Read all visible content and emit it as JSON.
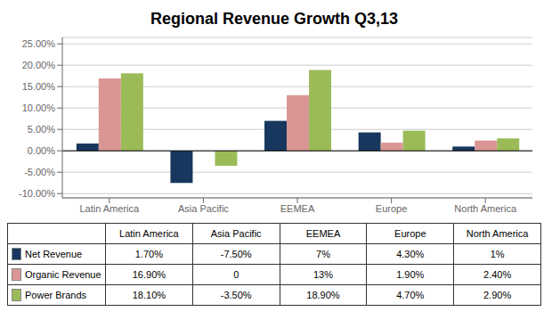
{
  "chart_data": {
    "type": "bar",
    "title": "Regional Revenue Growth Q3,13",
    "categories": [
      "Latin America",
      "Asia Pacific",
      "EEMEA",
      "Europe",
      "North America"
    ],
    "series": [
      {
        "name": "Net Revenue",
        "color": "#17375E",
        "values": [
          0.017,
          -0.075,
          0.07,
          0.043,
          0.01
        ],
        "value_labels": [
          "1.70%",
          "-7.50%",
          "7%",
          "4.30%",
          "1%"
        ]
      },
      {
        "name": "Organic Revenue",
        "color": "#DA9694",
        "values": [
          0.169,
          0,
          0.13,
          0.019,
          0.024
        ],
        "value_labels": [
          "16.90%",
          "0",
          "13%",
          "1.90%",
          "2.40%"
        ]
      },
      {
        "name": "Power Brands",
        "color": "#9BBB59",
        "values": [
          0.181,
          -0.035,
          0.189,
          0.047,
          0.029
        ],
        "value_labels": [
          "18.10%",
          "-3.50%",
          "18.90%",
          "4.70%",
          "2.90%"
        ]
      }
    ],
    "ylim": [
      -0.11,
      0.265
    ],
    "yticks": [
      {
        "value": -0.1,
        "label": "-10.00%"
      },
      {
        "value": -0.05,
        "label": "-5.00%"
      },
      {
        "value": 0,
        "label": "0.00%"
      },
      {
        "value": 0.05,
        "label": "5.00%"
      },
      {
        "value": 0.1,
        "label": "10.00%"
      },
      {
        "value": 0.15,
        "label": "15.00%"
      },
      {
        "value": 0.2,
        "label": "20.00%"
      },
      {
        "value": 0.25,
        "label": "25.00%"
      }
    ],
    "grid": true
  }
}
